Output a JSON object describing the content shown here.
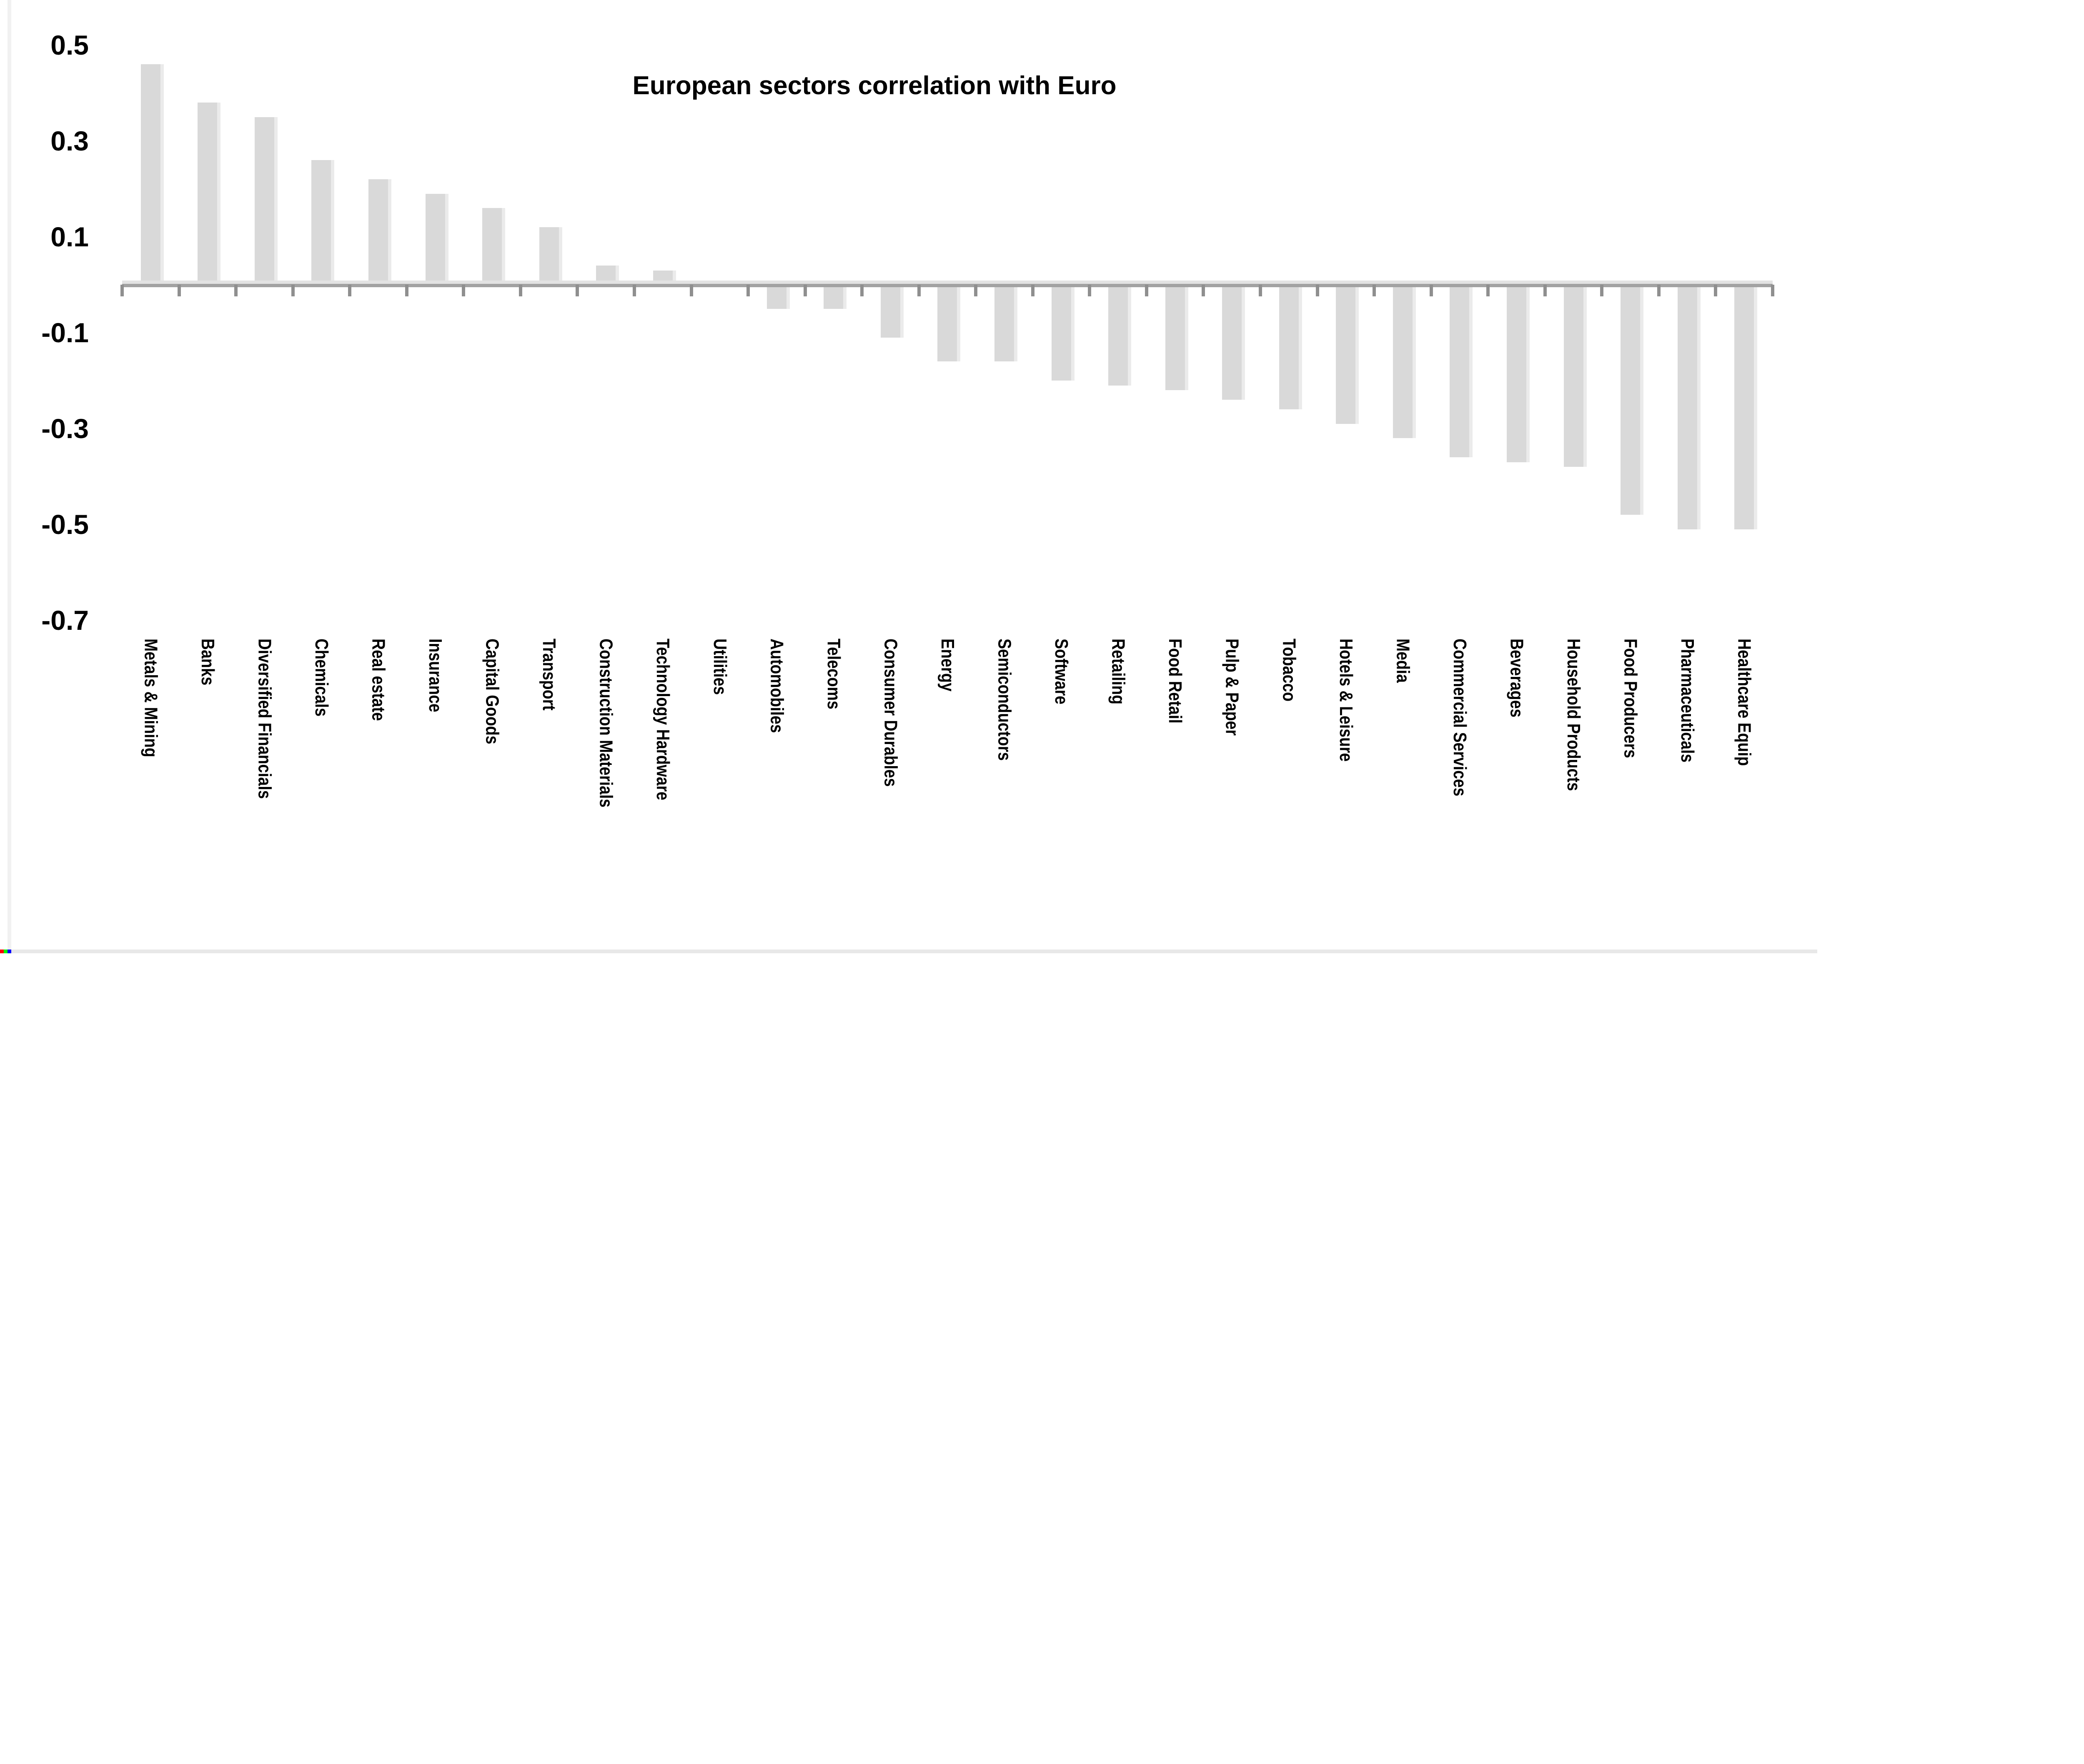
{
  "page": {
    "background_color": "#ffffff"
  },
  "chart_data": {
    "type": "bar",
    "title": "European sectors correlation with Euro",
    "categories": [
      "Metals & Mining",
      "Banks",
      "Diversified Financials",
      "Chemicals",
      "Real estate",
      "Insurance",
      "Capital Goods",
      "Transport",
      "Construction Materials",
      "Technology Hardware",
      "Utilities",
      "Automobiles",
      "Telecoms",
      "Consumer Durables",
      "Energy",
      "Semiconductors",
      "Software",
      "Retailing",
      "Food Retail",
      "Pulp & Paper",
      "Tobacco",
      "Hotels & Leisure",
      "Media",
      "Commercial Services",
      "Beverages",
      "Household Products",
      "Food Producers",
      "Pharmaceuticals",
      "Healthcare Equip"
    ],
    "values": [
      0.46,
      0.38,
      0.35,
      0.26,
      0.22,
      0.19,
      0.16,
      0.12,
      0.04,
      0.03,
      0.0,
      -0.05,
      -0.05,
      -0.11,
      -0.16,
      -0.16,
      -0.2,
      -0.21,
      -0.22,
      -0.24,
      -0.26,
      -0.29,
      -0.32,
      -0.36,
      -0.37,
      -0.38,
      -0.48,
      -0.51,
      -0.51
    ],
    "xlabel": "",
    "ylabel": "",
    "y_tick_labels": [
      "0.5",
      "0.3",
      "0.1",
      "-0.1",
      "-0.3",
      "-0.5",
      "-0.7"
    ],
    "ylim": [
      -0.7,
      0.55
    ],
    "grid": "off",
    "legend": "none",
    "bar_color": "#d9d9d9",
    "bar_highlight_color": "#ebebeb",
    "axis_color": "#a2a2a2",
    "axis_shadow_color": "#e3e3e3",
    "tick_color": "#8f8f8f",
    "text_color": "#000000",
    "border_color": "#e8e8e8"
  },
  "artifacts": {
    "corner_square_colors": [
      "#ff0000",
      "#00ff00",
      "#0000ff"
    ]
  }
}
